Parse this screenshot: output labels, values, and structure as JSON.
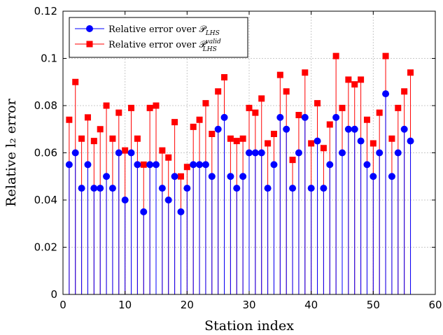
{
  "chart_data": {
    "type": "stem",
    "xlabel": "Station index",
    "ylabel": "Relative l₂ error",
    "xlim": [
      0,
      60
    ],
    "ylim": [
      0,
      0.12
    ],
    "xticks": [
      "0",
      "10",
      "20",
      "30",
      "40",
      "50",
      "60"
    ],
    "yticks": [
      "0",
      "0.02",
      "0.04",
      "0.06",
      "0.08",
      "0.1",
      "0.12"
    ],
    "grid": true,
    "legend_position": "top-left",
    "x": [
      1,
      2,
      3,
      4,
      5,
      6,
      7,
      8,
      9,
      10,
      11,
      12,
      13,
      14,
      15,
      16,
      17,
      18,
      19,
      20,
      21,
      22,
      23,
      24,
      25,
      26,
      27,
      28,
      29,
      30,
      31,
      32,
      33,
      34,
      35,
      36,
      37,
      38,
      39,
      40,
      41,
      42,
      43,
      44,
      45,
      46,
      47,
      48,
      49,
      50,
      51,
      52,
      53,
      54,
      55,
      56
    ],
    "series": [
      {
        "name": "Relative error over P_LHS",
        "legend_label": "Relative error over 𝒫",
        "legend_sub": "LHS",
        "color": "#0000ff",
        "marker": "circle",
        "values": [
          0.055,
          0.06,
          0.045,
          0.055,
          0.045,
          0.045,
          0.05,
          0.045,
          0.06,
          0.04,
          0.06,
          0.055,
          0.035,
          0.055,
          0.055,
          0.045,
          0.04,
          0.05,
          0.035,
          0.045,
          0.055,
          0.055,
          0.055,
          0.05,
          0.07,
          0.075,
          0.05,
          0.045,
          0.05,
          0.06,
          0.06,
          0.06,
          0.045,
          0.055,
          0.075,
          0.07,
          0.045,
          0.06,
          0.075,
          0.045,
          0.065,
          0.045,
          0.055,
          0.075,
          0.06,
          0.07,
          0.07,
          0.065,
          0.055,
          0.05,
          0.06,
          0.085,
          0.05,
          0.06,
          0.07,
          0.065
        ]
      },
      {
        "name": "Relative error over P_LHS^valid",
        "legend_label": "Relative error over 𝒫",
        "legend_sub": "LHS",
        "legend_sup": "valid",
        "color": "#ff0000",
        "marker": "square",
        "values": [
          0.074,
          0.09,
          0.066,
          0.075,
          0.065,
          0.07,
          0.08,
          0.066,
          0.077,
          0.061,
          0.079,
          0.066,
          0.055,
          0.079,
          0.08,
          0.061,
          0.058,
          0.073,
          0.05,
          0.054,
          0.071,
          0.074,
          0.081,
          0.068,
          0.086,
          0.092,
          0.066,
          0.065,
          0.066,
          0.079,
          0.077,
          0.083,
          0.064,
          0.068,
          0.093,
          0.086,
          0.057,
          0.076,
          0.094,
          0.064,
          0.081,
          0.062,
          0.072,
          0.101,
          0.079,
          0.091,
          0.089,
          0.091,
          0.074,
          0.064,
          0.077,
          0.101,
          0.066,
          0.079,
          0.086,
          0.094
        ]
      }
    ]
  }
}
